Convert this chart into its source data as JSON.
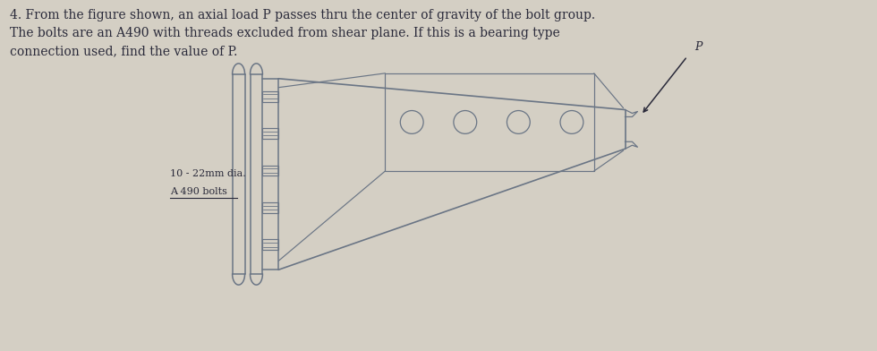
{
  "background_color": "#d4cfc4",
  "title_text": "4. From the figure shown, an axial load P passes thru the center of gravity of the bolt group.\nThe bolts are an A490 with threads excluded from shear plane. If this is a bearing type\nconnection used, find the value of P.",
  "title_fontsize": 10.0,
  "label1": "10 - 22mm dia.",
  "label2": "A 490 bolts",
  "p_label": "P",
  "line_color": "#6a7585",
  "text_color": "#2a2a3a",
  "fig_width": 9.8,
  "fig_height": 3.92
}
